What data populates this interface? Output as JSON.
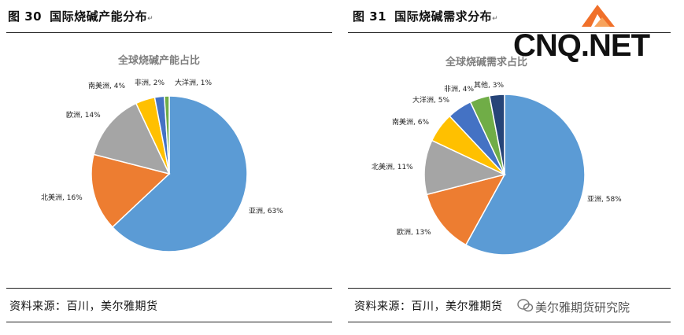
{
  "left": {
    "fig_num": "图 30",
    "fig_title": "国际烧碱产能分布",
    "source": "资料来源：百川，美尔雅期货",
    "chart_data": {
      "type": "pie",
      "title": "全球烧碱产能占比",
      "start_angle_deg": 0,
      "slices": [
        {
          "label": "亚洲",
          "value": 63,
          "text": "亚洲, 63%",
          "color": "#5b9bd5"
        },
        {
          "label": "北美洲",
          "value": 16,
          "text": "北美洲, 16%",
          "color": "#ed7d31"
        },
        {
          "label": "欧洲",
          "value": 14,
          "text": "欧洲, 14%",
          "color": "#a5a5a5"
        },
        {
          "label": "南美洲",
          "value": 4,
          "text": "南美洲, 4%",
          "color": "#ffc000"
        },
        {
          "label": "非洲",
          "value": 2,
          "text": "非洲, 2%",
          "color": "#4472c4"
        },
        {
          "label": "大洋洲",
          "value": 1,
          "text": "大洋洲, 1%",
          "color": "#70ad47"
        }
      ]
    }
  },
  "right": {
    "fig_num": "图 31",
    "fig_title": "国际烧碱需求分布",
    "source": "资料来源：百川，美尔雅期货",
    "chart_data": {
      "type": "pie",
      "title": "全球烧碱需求占比",
      "slices": [
        {
          "label": "亚洲",
          "value": 58,
          "text": "亚洲, 58%",
          "color": "#5b9bd5"
        },
        {
          "label": "欧洲",
          "value": 13,
          "text": "欧洲, 13%",
          "color": "#ed7d31"
        },
        {
          "label": "北美洲",
          "value": 11,
          "text": "北美洲, 11%",
          "color": "#a5a5a5"
        },
        {
          "label": "南美洲",
          "value": 6,
          "text": "南美洲, 6%",
          "color": "#ffc000"
        },
        {
          "label": "大洋洲",
          "value": 5,
          "text": "大洋洲, 5%",
          "color": "#4472c4"
        },
        {
          "label": "非洲",
          "value": 4,
          "text": "非洲, 4%",
          "color": "#70ad47"
        },
        {
          "label": "其他",
          "value": 3,
          "text": "其他, 3%",
          "color": "#264478"
        }
      ]
    }
  },
  "watermark": {
    "site": "CNQ.NET",
    "wechat": "美尔雅期货研究院"
  },
  "para_mark": "↵"
}
